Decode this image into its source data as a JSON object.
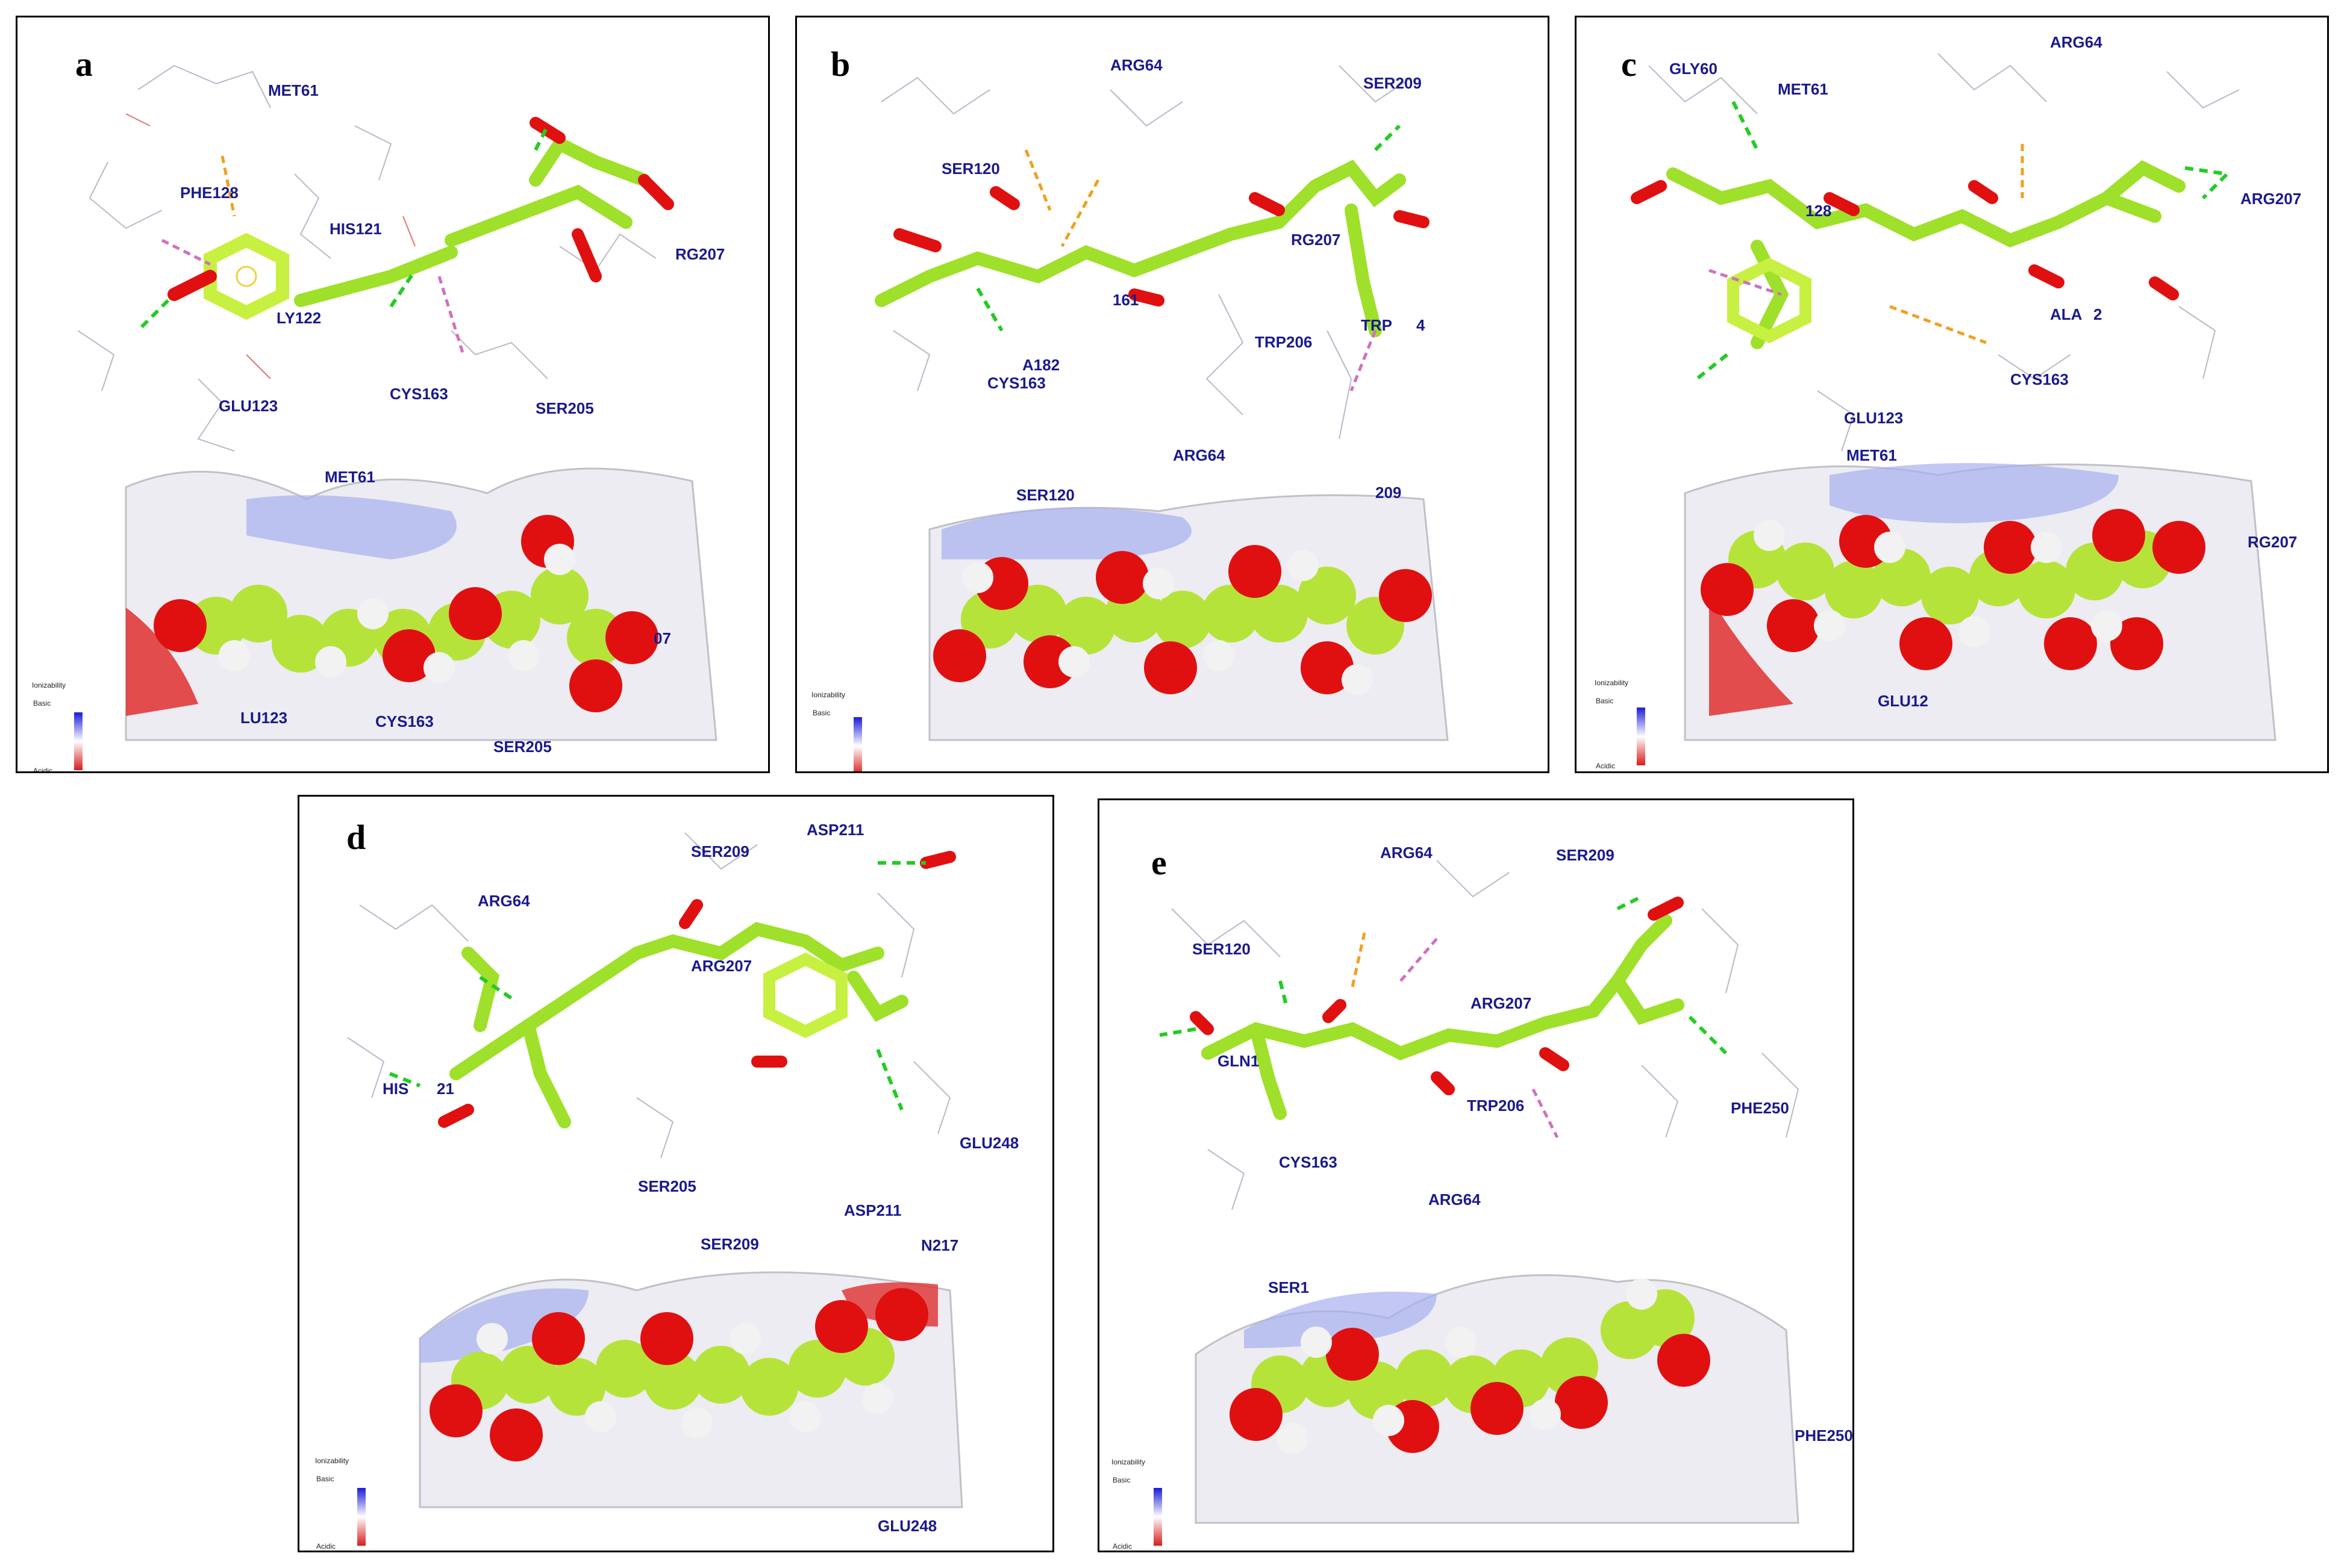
{
  "panels": [
    {
      "letter": "a",
      "residues_top": [
        "MET61",
        "PHE128",
        "HIS121",
        "LY122",
        "RG207",
        "GLU123",
        "CYS163",
        "SER205"
      ],
      "residues_bottom": [
        "MET61",
        "LU123",
        "CYS163",
        "SER205",
        "07"
      ]
    },
    {
      "letter": "b",
      "residues_top": [
        "ARG64",
        "SER209",
        "SER120",
        "RG207",
        "A182",
        "161",
        "TRP206",
        "TRP",
        "4",
        "CYS163"
      ],
      "residues_bottom": [
        "ARG64",
        "SER120",
        "209"
      ]
    },
    {
      "letter": "c",
      "residues_top": [
        "ARG64",
        "GLY60",
        "MET61",
        "128",
        "ARG207",
        "ALA",
        "2",
        "CYS163",
        "GLU123"
      ],
      "residues_bottom": [
        "MET61",
        "RG207",
        "GLU12"
      ]
    },
    {
      "letter": "d",
      "residues_top": [
        "SER209",
        "ASP211",
        "ARG64",
        "ARG207",
        "HIS",
        "21",
        "GLU248"
      ],
      "residues_bottom": [
        "SER205",
        "ASP211",
        "SER209",
        "N217",
        "GLU248"
      ]
    },
    {
      "letter": "e",
      "residues_top": [
        "ARG64",
        "SER209",
        "SER120",
        "ARG207",
        "GLN1",
        "TRP206",
        "PHE250",
        "CYS163"
      ],
      "residues_bottom": [
        "ARG64",
        "SER1",
        "PHE250"
      ]
    }
  ],
  "legend": {
    "title": "Ionizability",
    "top": "Basic",
    "bottom": "Acidic",
    "top_color": "#1c1cd8",
    "bottom_color": "#d81c1c"
  },
  "colors": {
    "carbon": "#9ee02a",
    "oxygen": "#e01010",
    "hydrogen": "#f2f2f2",
    "hbond": "#22cc22",
    "pi_stack": "#d070c0",
    "pi_sulfur": "#f0a020",
    "residue_text": "#1a1a8c"
  }
}
